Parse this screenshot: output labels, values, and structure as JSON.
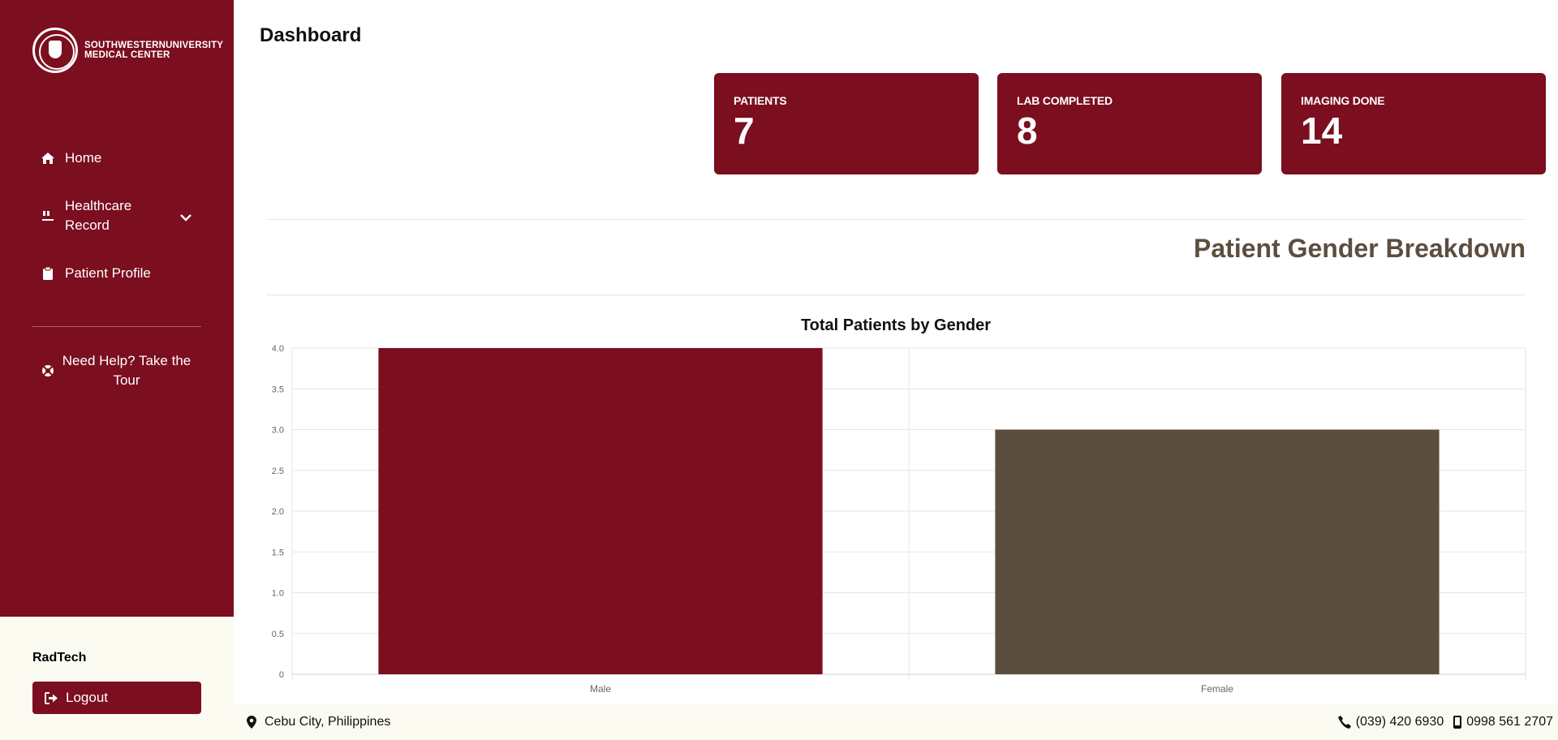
{
  "brand": {
    "line1": "SOUTHWESTERNUNIVERSITY",
    "line2": "MEDICAL CENTER"
  },
  "sidebar": {
    "items": [
      {
        "label": "Home",
        "icon": "home-icon"
      },
      {
        "label": "Healthcare Record",
        "icon": "healthcare-icon"
      },
      {
        "label": "Patient Profile",
        "icon": "clipboard-icon"
      }
    ],
    "help_label": "Need Help? Take the Tour",
    "user": "RadTech",
    "logout_label": "Logout"
  },
  "header": {
    "title": "Dashboard"
  },
  "stats": [
    {
      "label": "PATIENTS",
      "value": "7"
    },
    {
      "label": "LAB COMPLETED",
      "value": "8"
    },
    {
      "label": "IMAGING DONE",
      "value": "14"
    }
  ],
  "section": {
    "title": "Patient Gender Breakdown"
  },
  "colors": {
    "primary": "#7b0e1f",
    "secondary": "#5c4e3f",
    "cream": "#fcfbf2"
  },
  "chart_data": {
    "type": "bar",
    "title": "Total Patients by Gender",
    "categories": [
      "Male",
      "Female"
    ],
    "values": [
      4,
      3
    ],
    "colors": [
      "#7b0e1f",
      "#5c4e3f"
    ],
    "ylim": [
      0,
      4
    ],
    "yticks": [
      "0",
      "0.5",
      "1.0",
      "1.5",
      "2.0",
      "2.5",
      "3.0",
      "3.5",
      "4.0"
    ],
    "grid": true,
    "legend": "none"
  },
  "footer": {
    "location": "Cebu City, Philippines",
    "phone": "(039) 420 6930",
    "mobile": "0998 561 2707"
  }
}
